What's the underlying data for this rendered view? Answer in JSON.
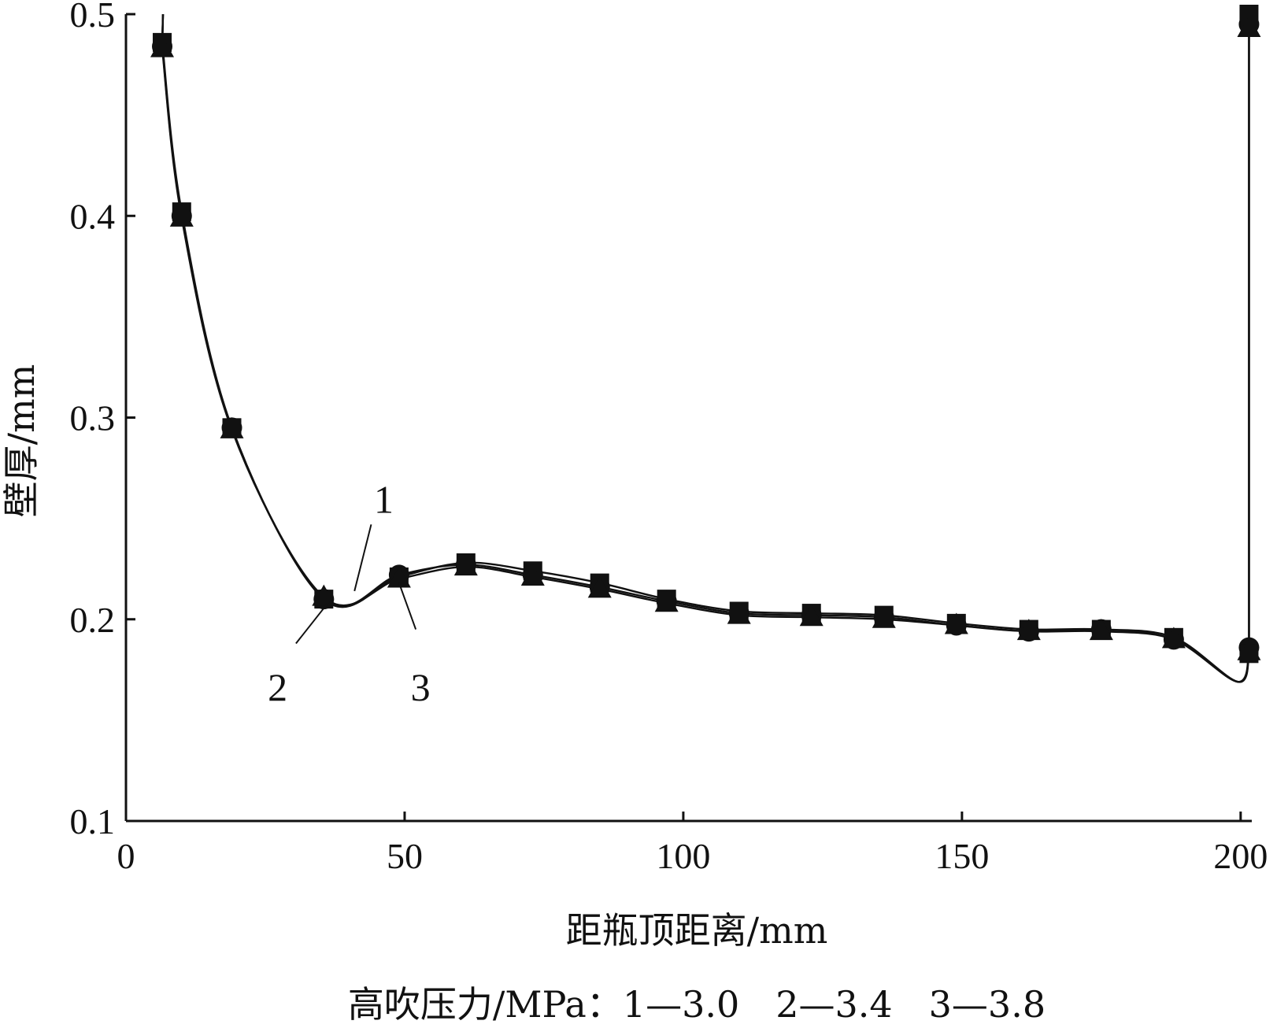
{
  "chart_data": {
    "type": "line",
    "xlabel": "距瓶顶距离/mm",
    "ylabel": "壁厚/mm",
    "xlim": [
      0,
      202
    ],
    "ylim": [
      0.1,
      0.5
    ],
    "x_ticks": [
      0,
      50,
      100,
      150,
      200
    ],
    "x_tick_labels": [
      "0",
      "50",
      "100",
      "150",
      "200"
    ],
    "y_ticks": [
      0.1,
      0.2,
      0.3,
      0.4,
      0.5
    ],
    "y_tick_labels": [
      "0.1",
      "0.2",
      "0.3",
      "0.4",
      "0.5"
    ],
    "grid": false,
    "caption": "高吹压力/MPa：1—3.0　2—3.4　3—3.8",
    "series": [
      {
        "name": "1",
        "x": [
          6.5,
          10,
          19,
          35.5,
          49,
          61,
          73,
          85,
          97,
          110,
          123,
          136,
          149,
          162,
          175,
          188,
          201.5,
          201.5
        ],
        "y": [
          0.484,
          0.4,
          0.295,
          0.21,
          0.222,
          0.227,
          0.222,
          0.216,
          0.209,
          0.203,
          0.202,
          0.201,
          0.197,
          0.194,
          0.195,
          0.19,
          0.186,
          0.495
        ]
      },
      {
        "name": "2",
        "x": [
          6.5,
          10,
          19,
          35.5,
          49,
          61,
          73,
          85,
          97,
          110,
          123,
          136,
          149,
          162,
          175,
          188,
          201.5,
          201.5
        ],
        "y": [
          0.486,
          0.402,
          0.295,
          0.21,
          0.221,
          0.228,
          0.224,
          0.218,
          0.21,
          0.204,
          0.203,
          0.202,
          0.198,
          0.195,
          0.195,
          0.191,
          0.183,
          0.5
        ]
      },
      {
        "name": "3",
        "x": [
          6.5,
          10,
          19,
          35.5,
          49,
          61,
          73,
          85,
          97,
          110,
          123,
          136,
          149,
          162,
          175,
          188,
          201.5,
          201.5
        ],
        "y": [
          0.483,
          0.399,
          0.294,
          0.211,
          0.22,
          0.226,
          0.221,
          0.215,
          0.208,
          0.202,
          0.201,
          0.2,
          0.197,
          0.194,
          0.194,
          0.19,
          0.184,
          0.493
        ]
      }
    ],
    "annotations": [
      {
        "text": "1",
        "x": 44,
        "y": 0.252
      },
      {
        "text": "2",
        "x": 27.5,
        "y": 0.18
      },
      {
        "text": "3",
        "x": 52,
        "y": 0.18
      }
    ]
  }
}
